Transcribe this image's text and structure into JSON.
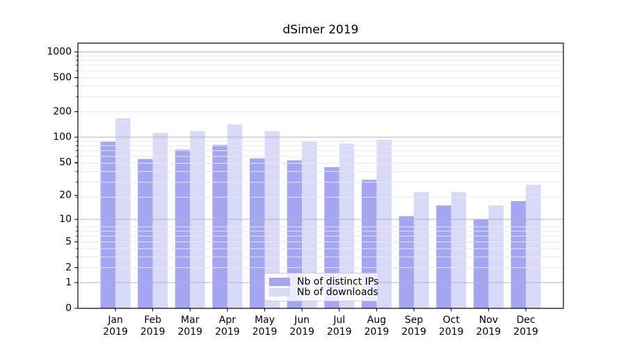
{
  "chart_data": {
    "type": "bar",
    "title": "dSimer 2019",
    "categories": [
      "Jan 2019",
      "Feb 2019",
      "Mar 2019",
      "Apr 2019",
      "May 2019",
      "Jun 2019",
      "Jul 2019",
      "Aug 2019",
      "Sep 2019",
      "Oct 2019",
      "Nov 2019",
      "Dec 2019"
    ],
    "series": [
      {
        "name": "Nb of distinct IPs",
        "color": "#a5a5f2",
        "values": [
          89,
          55,
          71,
          81,
          56,
          53,
          44,
          31,
          11,
          15,
          10,
          17
        ]
      },
      {
        "name": "Nb of downloads",
        "color": "#d9d9f8",
        "values": [
          167,
          112,
          118,
          141,
          118,
          88,
          84,
          93,
          22,
          22,
          15,
          27
        ]
      }
    ],
    "yscale": "log1p",
    "ylim": [
      0,
      1270
    ],
    "y_tick_values": [
      1000,
      500,
      200,
      100,
      50,
      20,
      10,
      5,
      2,
      1,
      0
    ],
    "grid_major_values": [
      1,
      10,
      100,
      1000
    ],
    "grid": true,
    "legend_position": "lower center",
    "colors": {
      "grid_major": "#b3b3b3",
      "grid_minor": "#e8e8e8",
      "axis": "#000000",
      "background": "#ffffff"
    }
  }
}
